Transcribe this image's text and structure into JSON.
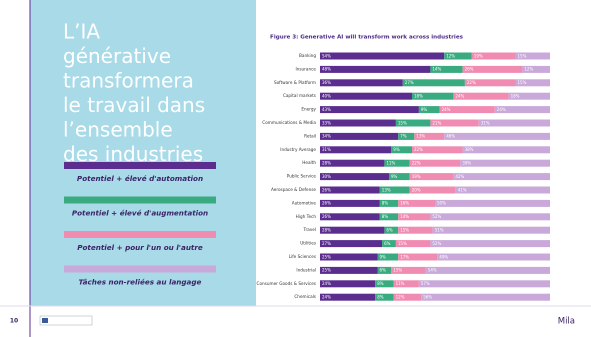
{
  "slide_title_lines": [
    "L’IA",
    "générative",
    "transformera",
    "le travail dans",
    "l’ensemble",
    "des industries"
  ],
  "footer": {
    "page_number": "10",
    "brand": "Mila"
  },
  "chart_data": {
    "type": "bar",
    "orientation": "horizontal",
    "stacked": true,
    "title": "Figure 3: Generative AI will transform work across industries",
    "categories": [
      "Banking",
      "Insurance",
      "Software & Platform",
      "Capital markets",
      "Energy",
      "Communications & Media",
      "Retail",
      "Industry Average",
      "Health",
      "Public Service",
      "Aerospace & Defense",
      "Automotive",
      "High Tech",
      "Travel",
      "Utilities",
      "Life Sciences",
      "Industrial",
      "Consumer Goods & Services",
      "Chemicals"
    ],
    "series": [
      {
        "name": "Potentiel + élevé d'automation",
        "color": "#5b2d8e",
        "values": [
          54,
          48,
          36,
          40,
          43,
          33,
          34,
          31,
          28,
          30,
          26,
          26,
          26,
          28,
          27,
          25,
          25,
          24,
          24
        ],
        "value_labels": [
          "54%",
          "48%",
          "36%",
          "40%",
          "43%",
          "33%",
          "34%",
          "31%",
          "28%",
          "30%",
          "26%",
          "26%",
          "26%",
          "28%",
          "27%",
          "25%",
          "25%",
          "24%",
          "24%"
        ]
      },
      {
        "name": "Potentiel + élevé d'augmentation",
        "color": "#3aaa80",
        "values": [
          12,
          14,
          27,
          18,
          9,
          15,
          7,
          9,
          11,
          9,
          13,
          8,
          8,
          6,
          6,
          9,
          6,
          8,
          8
        ],
        "value_labels": [
          "12%",
          "14%",
          "27%",
          "18%",
          "9%",
          "15%",
          "7%",
          "9%",
          "11%",
          "9%",
          "13%",
          "8%",
          "8%",
          "6%",
          "6%",
          "9%",
          "6%",
          "8%",
          "8%"
        ]
      },
      {
        "name": "Potentiel + pour l'un ou l'autre",
        "color": "#f08cb2",
        "values": [
          19,
          26,
          22,
          24,
          24,
          21,
          13,
          22,
          22,
          19,
          20,
          16,
          14,
          15,
          15,
          17,
          15,
          11,
          12
        ],
        "value_labels": [
          "19%",
          "26%",
          "22%",
          "24%",
          "24%",
          "21%",
          "13%",
          "22%",
          "22%",
          "19%",
          "20%",
          "16%",
          "14%",
          "15%",
          "15%",
          "17%",
          "15%",
          "11%",
          "12%"
        ]
      },
      {
        "name": "Tâches non-reliées au langage",
        "color": "#c9a9d9",
        "values": [
          15,
          12,
          15,
          18,
          24,
          31,
          46,
          38,
          39,
          42,
          41,
          50,
          52,
          51,
          52,
          49,
          54,
          57,
          56
        ],
        "value_labels": [
          "15%",
          "12%",
          "15%",
          "18%",
          "24%",
          "31%",
          "46%",
          "38%",
          "39%",
          "42%",
          "41%",
          "50%",
          "52%",
          "51%",
          "52%",
          "49%",
          "54%",
          "57%",
          "56%"
        ]
      }
    ]
  }
}
